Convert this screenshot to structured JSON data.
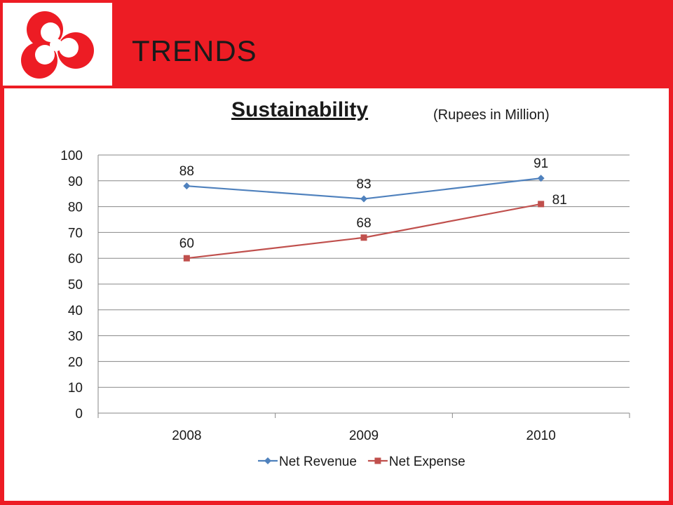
{
  "slide": {
    "title": "TRENDS",
    "colors": {
      "band": "#ed1c24",
      "background": "#ffffff"
    },
    "logo": {
      "icon": "bank-logo-icon",
      "color": "#ed1c24"
    }
  },
  "chart_data": {
    "type": "line",
    "title": "Sustainability",
    "subtitle": "(Rupees in Million)",
    "categories": [
      "2008",
      "2009",
      "2010"
    ],
    "series": [
      {
        "name": "Net Revenue",
        "values": [
          88,
          83,
          91
        ],
        "color": "#4f81bd",
        "marker": "diamond"
      },
      {
        "name": "Net Expense",
        "values": [
          60,
          68,
          81
        ],
        "color": "#c0504d",
        "marker": "square"
      }
    ],
    "ylim": [
      0,
      100
    ],
    "yticks": [
      0,
      10,
      20,
      30,
      40,
      50,
      60,
      70,
      80,
      90,
      100
    ],
    "grid": true,
    "data_labels": true,
    "legend": "bottom"
  }
}
